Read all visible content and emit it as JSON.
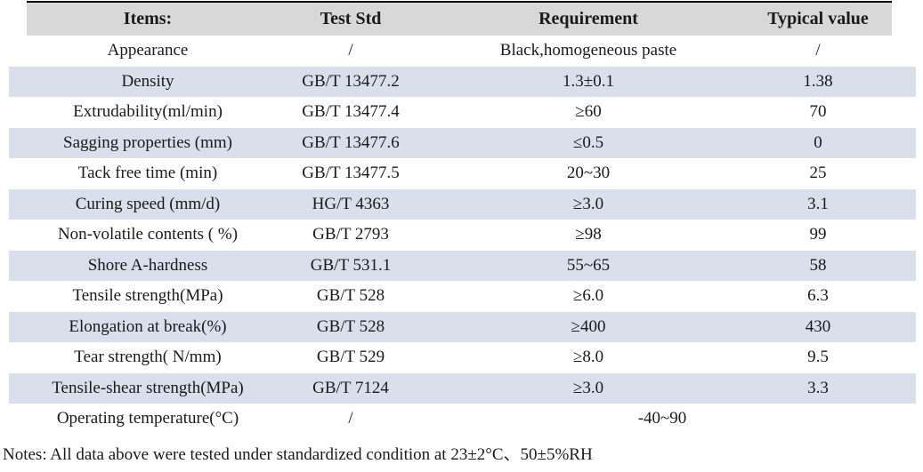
{
  "table": {
    "headers": [
      "Items:",
      "Test Std",
      "Requirement",
      "Typical value"
    ],
    "rows": [
      {
        "item": "Appearance",
        "test_std": "/",
        "requirement": "Black,homogeneous paste",
        "typical_value": "/"
      },
      {
        "item": "Density",
        "test_std": "GB/T 13477.2",
        "requirement": "1.3±0.1",
        "typical_value": "1.38"
      },
      {
        "item": "Extrudability(ml/min)",
        "test_std": "GB/T 13477.4",
        "requirement": "≥60",
        "typical_value": "70"
      },
      {
        "item": "Sagging properties (mm)",
        "test_std": "GB/T 13477.6",
        "requirement": "≤0.5",
        "typical_value": "0"
      },
      {
        "item": "Tack free time (min)",
        "test_std": "GB/T 13477.5",
        "requirement": "20~30",
        "typical_value": "25"
      },
      {
        "item": "Curing speed (mm/d)",
        "test_std": "HG/T 4363",
        "requirement": "≥3.0",
        "typical_value": "3.1"
      },
      {
        "item": "Non-volatile contents ( %)",
        "test_std": "GB/T 2793",
        "requirement": "≥98",
        "typical_value": "99"
      },
      {
        "item": "Shore A-hardness",
        "test_std": "GB/T 531.1",
        "requirement": "55~65",
        "typical_value": "58"
      },
      {
        "item": "Tensile strength(MPa)",
        "test_std": "GB/T 528",
        "requirement": "≥6.0",
        "typical_value": "6.3"
      },
      {
        "item": "Elongation at break(%)",
        "test_std": "GB/T 528",
        "requirement": "≥400",
        "typical_value": "430"
      },
      {
        "item": "Tear strength( N/mm)",
        "test_std": "GB/T 529",
        "requirement": "≥8.0",
        "typical_value": "9.5"
      },
      {
        "item": "Tensile-shear strength(MPa)",
        "test_std": "GB/T 7124",
        "requirement": "≥3.0",
        "typical_value": "3.3"
      },
      {
        "item": "Operating temperature(°C)",
        "test_std": "/",
        "requirement": "-40~90"
      }
    ],
    "colors": {
      "header_bg": "#d8d8d8",
      "stripe_bg": "#d9e0eb",
      "top_border": "#000000",
      "text": "#1a1a1a"
    }
  },
  "notes": {
    "text": "Notes: All data above were tested under standardized condition at 23±2°C、50±5%RH"
  }
}
